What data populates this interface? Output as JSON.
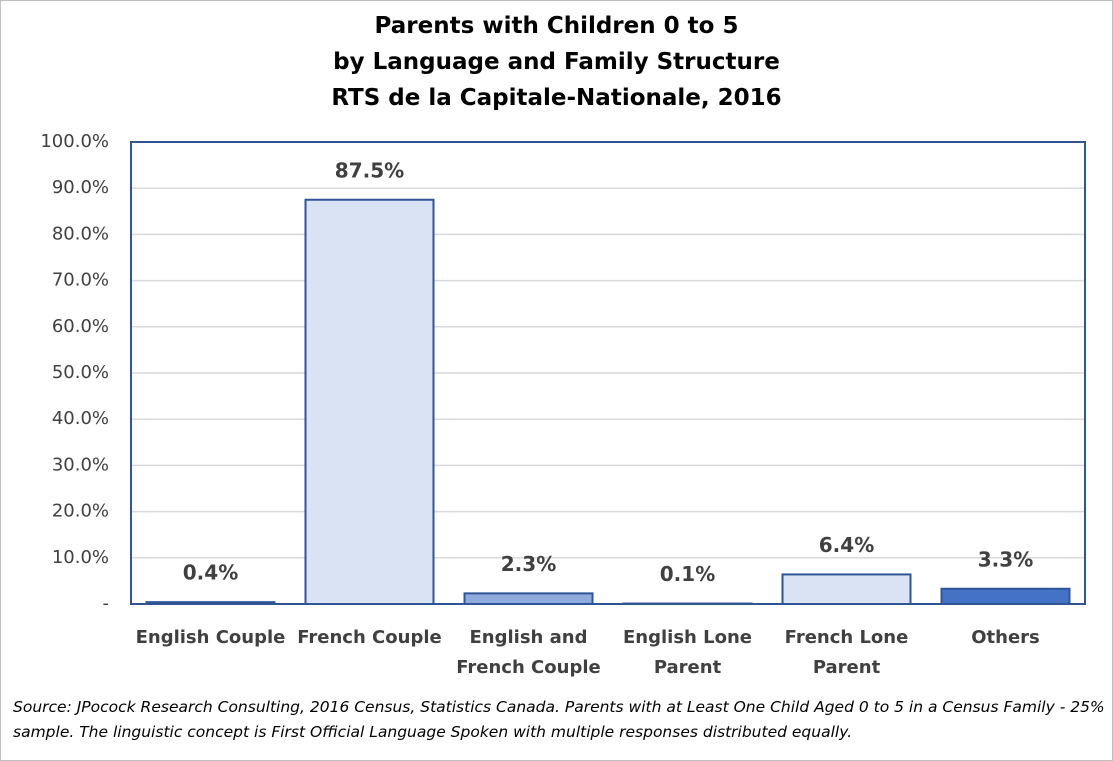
{
  "chart_data": {
    "type": "bar",
    "title": [
      "Parents with Children 0 to 5",
      "by Language and Family Structure",
      "RTS de la Capitale-Nationale, 2016"
    ],
    "categories": [
      "English Couple",
      "French Couple",
      "English and French Couple",
      "English Lone Parent",
      "French Lone Parent",
      "Others"
    ],
    "values": [
      0.4,
      87.5,
      2.3,
      0.1,
      6.4,
      3.3
    ],
    "value_labels": [
      "0.4%",
      "87.5%",
      "2.3%",
      "0.1%",
      "6.4%",
      "3.3%"
    ],
    "colors": [
      "#2f5597",
      "#dae3f3",
      "#8faadc",
      "#dae3f3",
      "#dae3f3",
      "#4472c4"
    ],
    "ylim": [
      0,
      100
    ],
    "yticks": [
      {
        "value": 0,
        "label": "-"
      },
      {
        "value": 10,
        "label": "10.0%"
      },
      {
        "value": 20,
        "label": "20.0%"
      },
      {
        "value": 30,
        "label": "30.0%"
      },
      {
        "value": 40,
        "label": "40.0%"
      },
      {
        "value": 50,
        "label": "50.0%"
      },
      {
        "value": 60,
        "label": "60.0%"
      },
      {
        "value": 70,
        "label": "70.0%"
      },
      {
        "value": 80,
        "label": "80.0%"
      },
      {
        "value": 90,
        "label": "90.0%"
      },
      {
        "value": 100,
        "label": "100.0%"
      }
    ],
    "grid": true,
    "source": "Source: JPocock Research Consulting, 2016 Census, Statistics Canada. Parents with at Least One Child Aged 0 to 5 in a Census Family - 25% sample. The linguistic concept is First Official Language Spoken with multiple responses distributed equally."
  }
}
